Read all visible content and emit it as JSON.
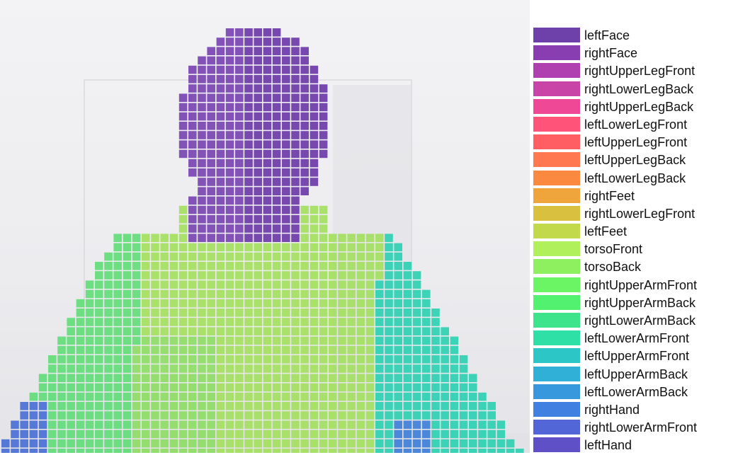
{
  "scene": {
    "description_icon": "body-part-segmentation-overlay",
    "background_color": "#efeff2"
  },
  "legend": [
    {
      "label": "leftFace",
      "color": "#6e40aa"
    },
    {
      "label": "rightFace",
      "color": "#883eb1"
    },
    {
      "label": "rightUpperLegFront",
      "color": "#b03fb0"
    },
    {
      "label": "rightLowerLegBack",
      "color": "#c844a7"
    },
    {
      "label": "rightUpperLegBack",
      "color": "#ef4896"
    },
    {
      "label": "leftLowerLegFront",
      "color": "#ff5379"
    },
    {
      "label": "leftUpperLegFront",
      "color": "#ff5e63"
    },
    {
      "label": "leftUpperLegBack",
      "color": "#ff7850"
    },
    {
      "label": "leftLowerLegBack",
      "color": "#fb8a40"
    },
    {
      "label": "rightFeet",
      "color": "#efa43c"
    },
    {
      "label": "rightLowerLegFront",
      "color": "#d9c03f"
    },
    {
      "label": "leftFeet",
      "color": "#c2d94b"
    },
    {
      "label": "torsoFront",
      "color": "#aff05b"
    },
    {
      "label": "torsoBack",
      "color": "#8ef05f"
    },
    {
      "label": "rightUpperArmFront",
      "color": "#6bf564"
    },
    {
      "label": "rightUpperArmBack",
      "color": "#52f170"
    },
    {
      "label": "rightLowerArmBack",
      "color": "#3de48c"
    },
    {
      "label": "leftLowerArmFront",
      "color": "#2ee0a5"
    },
    {
      "label": "leftUpperArmFront",
      "color": "#2cc6c6"
    },
    {
      "label": "leftUpperArmBack",
      "color": "#30b0d6"
    },
    {
      "label": "leftLowerArmBack",
      "color": "#3798dd"
    },
    {
      "label": "rightHand",
      "color": "#4080e0"
    },
    {
      "label": "rightLowerArmFront",
      "color": "#5266d8"
    },
    {
      "label": "leftHand",
      "color": "#6050c8"
    }
  ],
  "segmentation": {
    "face_left_color": "#7a44b2",
    "face_right_color": "#6d3aa8",
    "torso_color": "#a4e060",
    "torso_side_color": "#8edc64",
    "left_arm_color": "#62dc78",
    "right_arm_color": "#2ed0b2",
    "hand_color": "#3f7fd8",
    "hand_left_color": "#4a6fd4"
  }
}
